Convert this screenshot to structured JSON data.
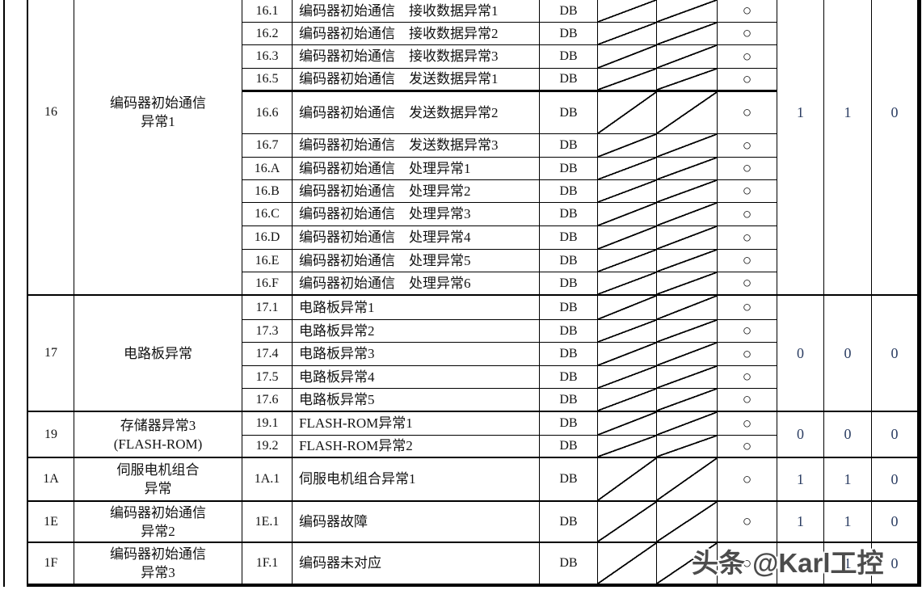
{
  "table": {
    "groups": [
      {
        "code": "16",
        "name": "编码器初始通信\n异常1",
        "attributes": [
          "1",
          "1",
          "0"
        ],
        "rows": [
          {
            "sub_code": "16.1",
            "description": "编码器初始通信　接收数据异常1",
            "db": "DB",
            "circle": "○"
          },
          {
            "sub_code": "16.2",
            "description": "编码器初始通信　接收数据异常2",
            "db": "DB",
            "circle": "○"
          },
          {
            "sub_code": "16.3",
            "description": "编码器初始通信　接收数据异常3",
            "db": "DB",
            "circle": "○"
          },
          {
            "sub_code": "16.5",
            "description": "编码器初始通信　发送数据异常1",
            "db": "DB",
            "circle": "○"
          },
          {
            "sub_code": "16.6",
            "description": "编码器初始通信　发送数据异常2",
            "db": "DB",
            "circle": "○"
          },
          {
            "sub_code": "16.7",
            "description": "编码器初始通信　发送数据异常3",
            "db": "DB",
            "circle": "○"
          },
          {
            "sub_code": "16.A",
            "description": "编码器初始通信　处理异常1",
            "db": "DB",
            "circle": "○"
          },
          {
            "sub_code": "16.B",
            "description": "编码器初始通信　处理异常2",
            "db": "DB",
            "circle": "○"
          },
          {
            "sub_code": "16.C",
            "description": "编码器初始通信　处理异常3",
            "db": "DB",
            "circle": "○"
          },
          {
            "sub_code": "16.D",
            "description": "编码器初始通信　处理异常4",
            "db": "DB",
            "circle": "○"
          },
          {
            "sub_code": "16.E",
            "description": "编码器初始通信　处理异常5",
            "db": "DB",
            "circle": "○"
          },
          {
            "sub_code": "16.F",
            "description": "编码器初始通信　处理异常6",
            "db": "DB",
            "circle": "○"
          }
        ]
      },
      {
        "code": "17",
        "name": "电路板异常",
        "attributes": [
          "0",
          "0",
          "0"
        ],
        "rows": [
          {
            "sub_code": "17.1",
            "description": "电路板异常1",
            "db": "DB",
            "circle": "○"
          },
          {
            "sub_code": "17.3",
            "description": "电路板异常2",
            "db": "DB",
            "circle": "○"
          },
          {
            "sub_code": "17.4",
            "description": "电路板异常3",
            "db": "DB",
            "circle": "○"
          },
          {
            "sub_code": "17.5",
            "description": "电路板异常4",
            "db": "DB",
            "circle": "○"
          },
          {
            "sub_code": "17.6",
            "description": "电路板异常5",
            "db": "DB",
            "circle": "○"
          }
        ]
      },
      {
        "code": "19",
        "name": "存储器异常3\n(FLASH-ROM)",
        "attributes": [
          "0",
          "0",
          "0"
        ],
        "rows": [
          {
            "sub_code": "19.1",
            "description": "FLASH-ROM异常1",
            "db": "DB",
            "circle": "○"
          },
          {
            "sub_code": "19.2",
            "description": "FLASH-ROM异常2",
            "db": "DB",
            "circle": "○"
          }
        ]
      },
      {
        "code": "1A",
        "name": "伺服电机组合\n异常",
        "attributes": [
          "1",
          "1",
          "0"
        ],
        "rows": [
          {
            "sub_code": "1A.1",
            "description": "伺服电机组合异常1",
            "db": "DB",
            "circle": "○"
          }
        ]
      },
      {
        "code": "1E",
        "name": "编码器初始通信\n异常2",
        "attributes": [
          "1",
          "1",
          "0"
        ],
        "rows": [
          {
            "sub_code": "1E.1",
            "description": "编码器故障",
            "db": "DB",
            "circle": "○"
          }
        ]
      },
      {
        "code": "1F",
        "name": "编码器初始通信\n异常3",
        "attributes": [
          "1",
          "1",
          "0"
        ],
        "rows": [
          {
            "sub_code": "1F.1",
            "description": "编码器未对应",
            "db": "DB",
            "circle": "○"
          }
        ]
      }
    ]
  },
  "watermark": {
    "text": "头条 @Karl工控"
  },
  "colors": {
    "border": "#000000",
    "attr_value": "#2c3e63",
    "watermark_text": "#4c4c4c"
  }
}
